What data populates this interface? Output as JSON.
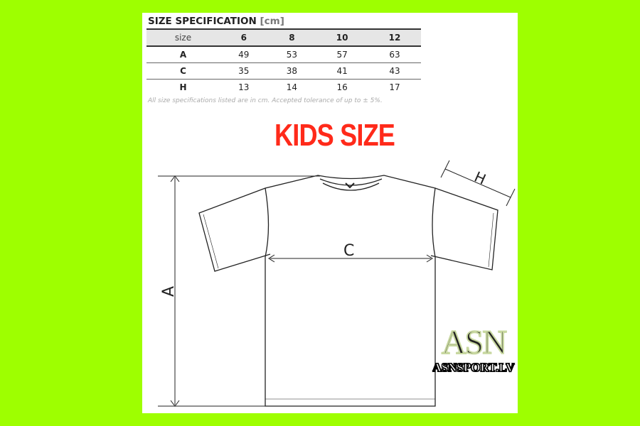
{
  "spec": {
    "title": "SIZE SPECIFICATION",
    "unit": "[cm]",
    "headers": [
      "size",
      "6",
      "8",
      "10",
      "12"
    ],
    "rows": [
      [
        "A",
        "49",
        "53",
        "57",
        "63"
      ],
      [
        "C",
        "35",
        "38",
        "41",
        "43"
      ],
      [
        "H",
        "13",
        "14",
        "16",
        "17"
      ]
    ],
    "note": "All size specifications listed are in cm. Accepted tolerance of up to ± 5%."
  },
  "heading": "KIDS SIZE",
  "labels": {
    "a": "A",
    "c": "C",
    "h": "H"
  },
  "logo": {
    "mark": "ASN",
    "text": "ASNSPORT.LV"
  },
  "colors": {
    "background": "#9eff00",
    "heading": "#ff2a1a"
  }
}
